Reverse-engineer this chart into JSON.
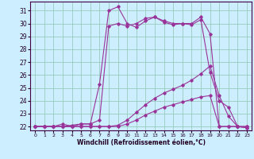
{
  "xlabel": "Windchill (Refroidissement éolien,°C)",
  "bg_color": "#cceeff",
  "grid_color": "#99ccbb",
  "line_color": "#993399",
  "xlim": [
    -0.5,
    23.5
  ],
  "ylim": [
    21.7,
    31.7
  ],
  "xticks": [
    0,
    1,
    2,
    3,
    4,
    5,
    6,
    7,
    8,
    9,
    10,
    11,
    12,
    13,
    14,
    15,
    16,
    17,
    18,
    19,
    20,
    21,
    22,
    23
  ],
  "yticks": [
    22,
    23,
    24,
    25,
    26,
    27,
    28,
    29,
    30,
    31
  ],
  "lines": [
    {
      "x": [
        0,
        1,
        2,
        3,
        4,
        5,
        6,
        7,
        8,
        9,
        10,
        11,
        12,
        13,
        14,
        15,
        16,
        17,
        18,
        19,
        20,
        21,
        22,
        23
      ],
      "y": [
        22.0,
        22.0,
        22.0,
        22.2,
        22.0,
        22.2,
        22.2,
        25.3,
        31.0,
        31.3,
        30.0,
        29.7,
        30.2,
        30.5,
        30.1,
        29.9,
        30.0,
        30.0,
        30.5,
        29.2,
        22.0,
        22.0,
        22.0,
        21.9
      ]
    },
    {
      "x": [
        0,
        1,
        2,
        3,
        4,
        5,
        6,
        7,
        8,
        9,
        10,
        11,
        12,
        13,
        14,
        15,
        16,
        17,
        18,
        19,
        20,
        21,
        22,
        23
      ],
      "y": [
        22.0,
        22.0,
        22.0,
        22.0,
        22.1,
        22.2,
        22.2,
        22.5,
        29.8,
        30.0,
        29.8,
        30.0,
        30.4,
        30.5,
        30.2,
        30.0,
        30.0,
        29.9,
        30.3,
        26.2,
        24.0,
        23.5,
        22.0,
        21.9
      ]
    },
    {
      "x": [
        0,
        1,
        2,
        3,
        4,
        5,
        6,
        7,
        8,
        9,
        10,
        11,
        12,
        13,
        14,
        15,
        16,
        17,
        18,
        19,
        20,
        21,
        22,
        23
      ],
      "y": [
        22.0,
        22.0,
        22.0,
        22.0,
        22.0,
        22.0,
        22.0,
        22.0,
        22.0,
        22.1,
        22.5,
        23.1,
        23.7,
        24.2,
        24.6,
        24.9,
        25.2,
        25.6,
        26.1,
        26.7,
        24.4,
        22.8,
        22.0,
        22.0
      ]
    },
    {
      "x": [
        0,
        1,
        2,
        3,
        4,
        5,
        6,
        7,
        8,
        9,
        10,
        11,
        12,
        13,
        14,
        15,
        16,
        17,
        18,
        19,
        20,
        21,
        22,
        23
      ],
      "y": [
        22.0,
        22.0,
        22.0,
        22.0,
        22.0,
        22.0,
        22.0,
        22.0,
        22.0,
        22.0,
        22.2,
        22.5,
        22.9,
        23.2,
        23.5,
        23.7,
        23.9,
        24.1,
        24.3,
        24.4,
        22.0,
        22.0,
        22.0,
        22.0
      ]
    }
  ]
}
